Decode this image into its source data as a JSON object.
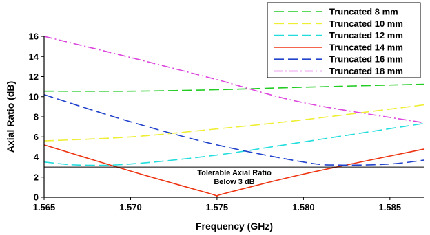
{
  "chart_data": {
    "type": "line",
    "xlabel": "Frequency (GHz)",
    "ylabel": "Axial Ratio (dB)",
    "xlim": [
      1.565,
      1.587
    ],
    "ylim": [
      0,
      16
    ],
    "x_ticks": [
      "1.565",
      "1.570",
      "1.575",
      "1.580",
      "1.585"
    ],
    "y_ticks": [
      "0",
      "2",
      "4",
      "6",
      "8",
      "10",
      "12",
      "14",
      "16"
    ],
    "legend_position": "top-right",
    "grid": false,
    "series": [
      {
        "name": "Truncated 8 mm",
        "color": "#22cc22",
        "dash": "long-dash",
        "x": [
          1.565,
          1.57,
          1.575,
          1.58,
          1.587
        ],
        "y": [
          10.55,
          10.55,
          10.7,
          10.95,
          11.25
        ]
      },
      {
        "name": "Truncated 10 mm",
        "color": "#eeee33",
        "dash": "long-dash",
        "x": [
          1.565,
          1.57,
          1.575,
          1.58,
          1.587
        ],
        "y": [
          5.6,
          6.0,
          6.8,
          7.7,
          9.2
        ]
      },
      {
        "name": "Truncated 12 mm",
        "color": "#22dddd",
        "dash": "long-dash",
        "x": [
          1.565,
          1.567,
          1.57,
          1.575,
          1.58,
          1.587
        ],
        "y": [
          3.5,
          3.2,
          3.3,
          4.2,
          5.5,
          7.35
        ]
      },
      {
        "name": "Truncated 14 mm",
        "color": "#ee3311",
        "dash": "solid",
        "x": [
          1.565,
          1.57,
          1.5745,
          1.575,
          1.5755,
          1.58,
          1.587
        ],
        "y": [
          5.2,
          2.6,
          0.4,
          0.15,
          0.4,
          2.3,
          4.8
        ]
      },
      {
        "name": "Truncated 16 mm",
        "color": "#2244cc",
        "dash": "long-dash",
        "x": [
          1.565,
          1.57,
          1.575,
          1.58,
          1.582,
          1.585,
          1.587
        ],
        "y": [
          10.2,
          7.5,
          5.2,
          3.5,
          3.2,
          3.3,
          3.7
        ]
      },
      {
        "name": "Truncated 18 mm",
        "color": "#dd44dd",
        "dash": "dash-dot",
        "x": [
          1.565,
          1.57,
          1.575,
          1.58,
          1.587
        ],
        "y": [
          16.0,
          13.9,
          11.7,
          9.4,
          7.4
        ]
      }
    ],
    "reference_line": {
      "y": 3.0,
      "color": "#000000"
    },
    "annotation": {
      "lines": [
        "Tolerable Axial Ratio",
        "Below 3 dB"
      ],
      "x": 1.576,
      "y": 2.2
    }
  }
}
